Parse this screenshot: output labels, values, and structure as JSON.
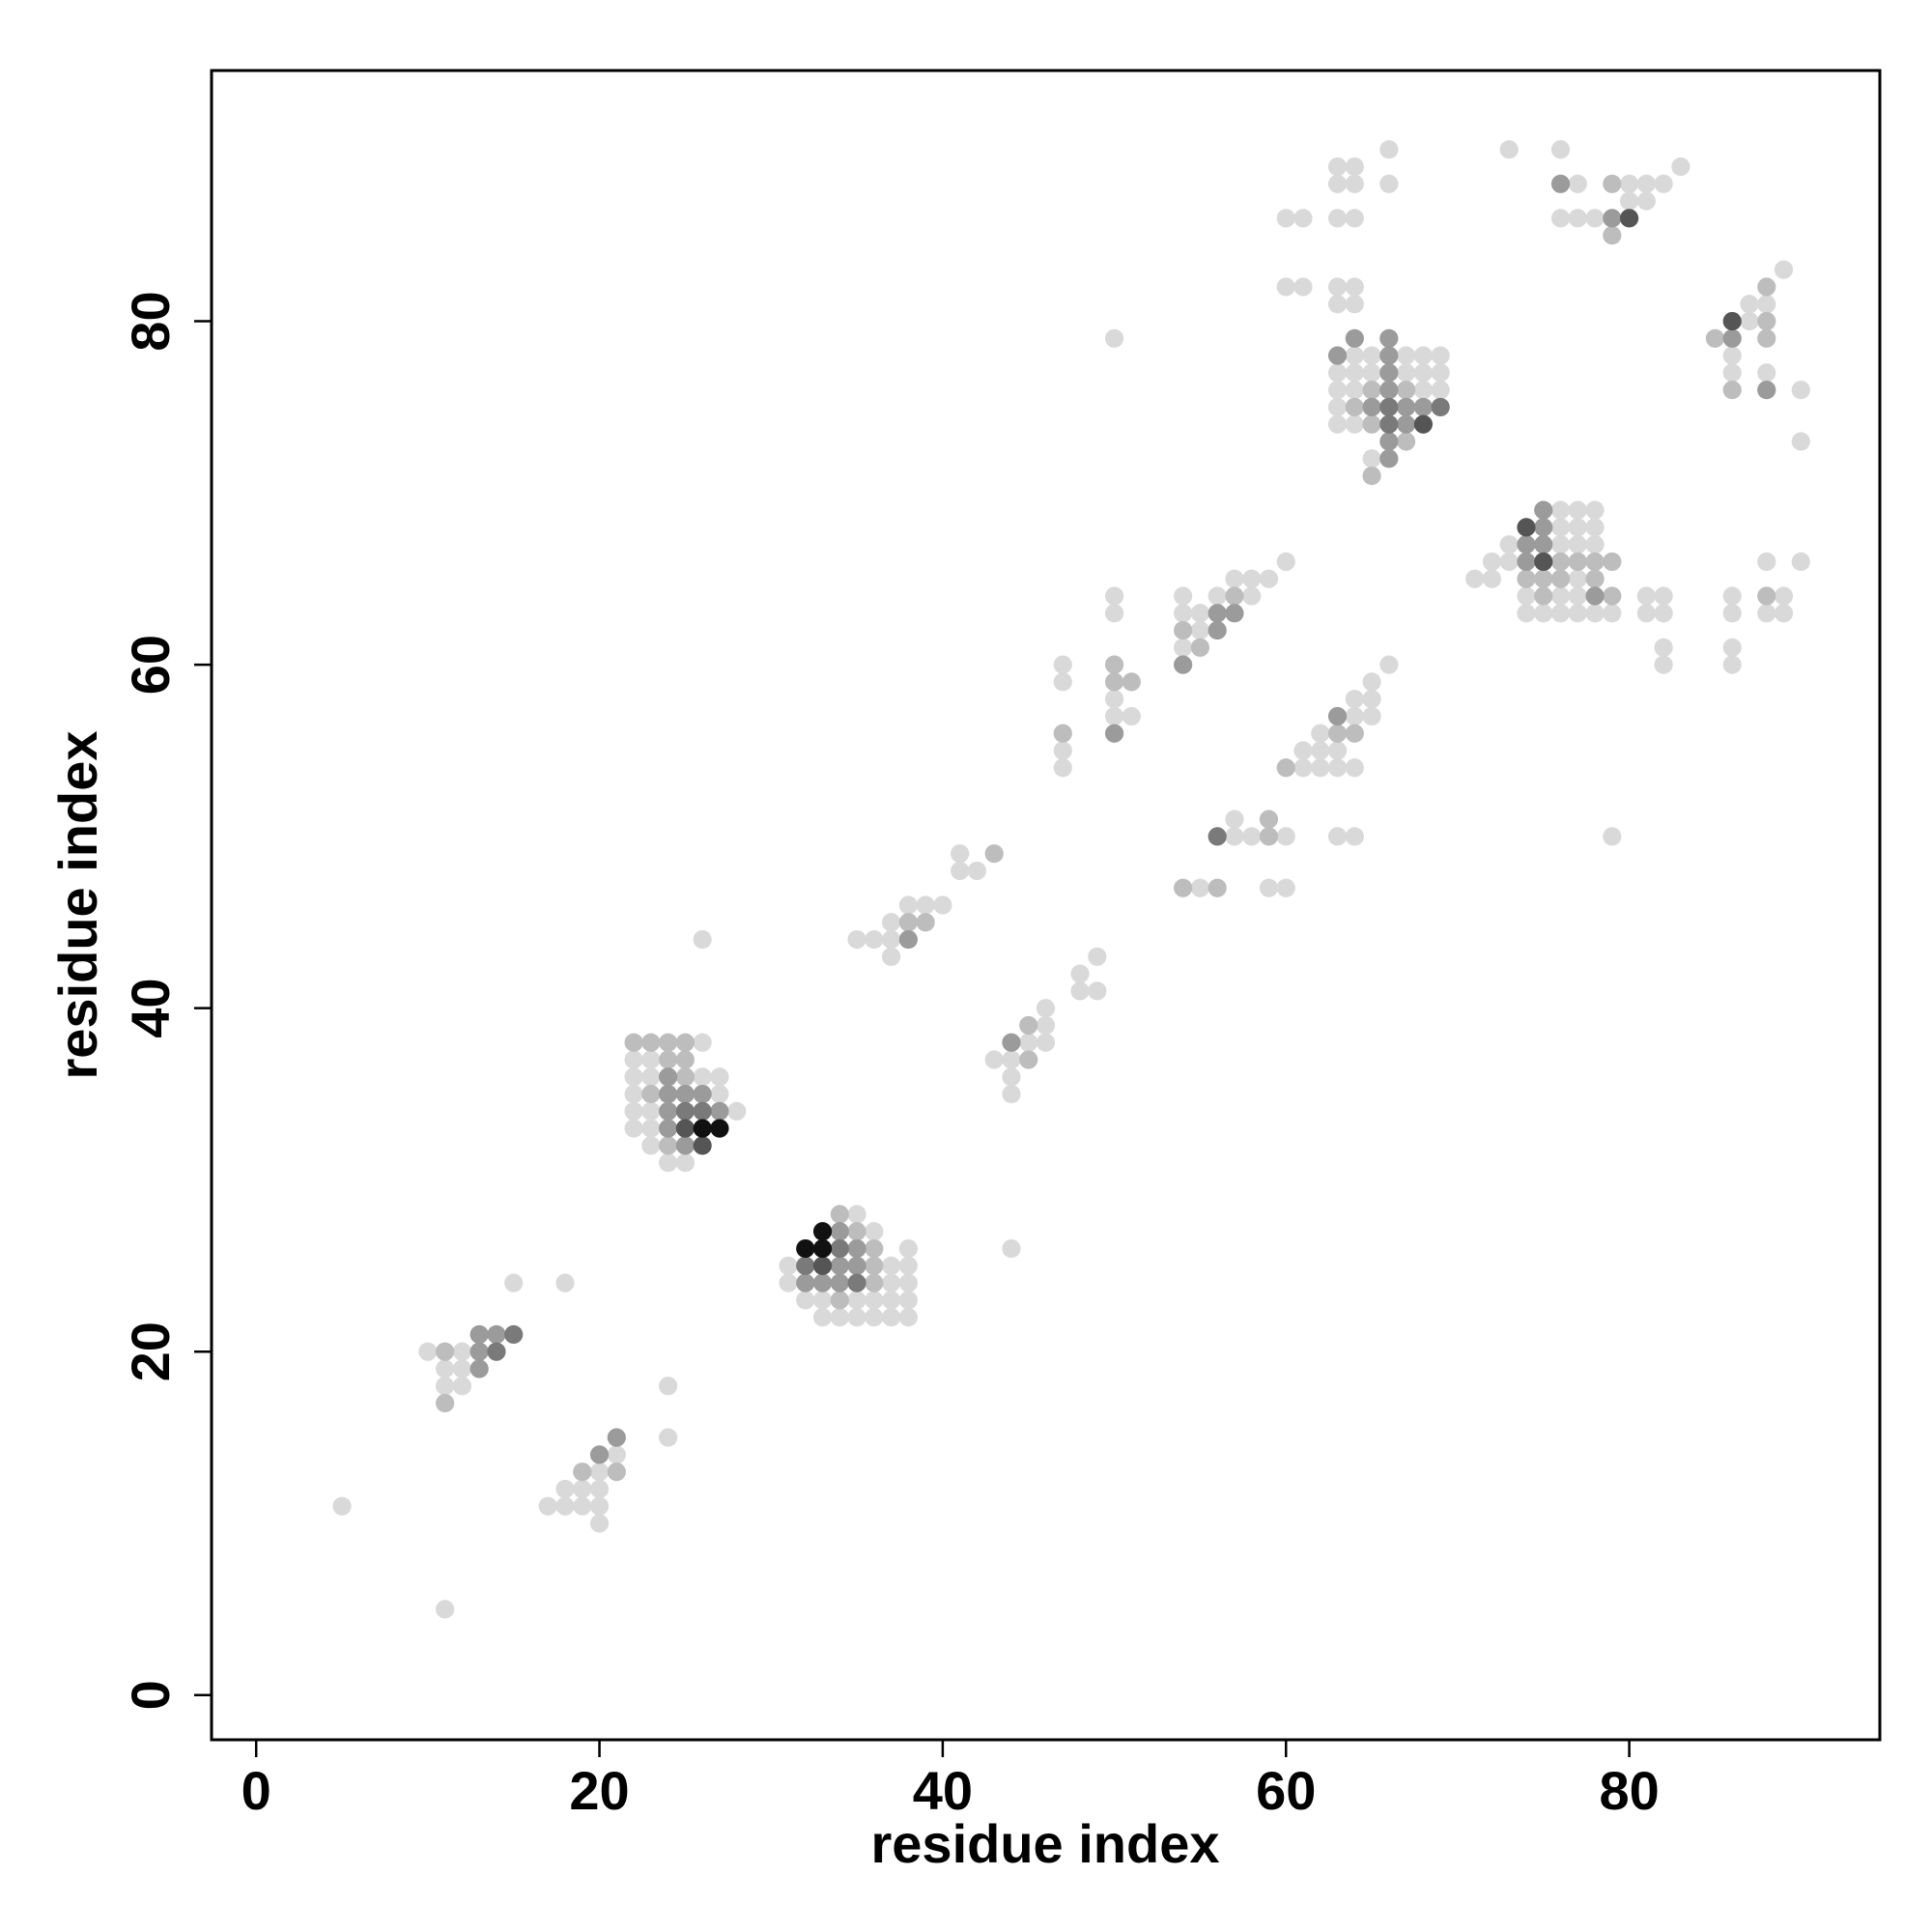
{
  "chart_data": {
    "type": "scatter",
    "xlabel": "residue index",
    "ylabel": "residue index",
    "xlim": [
      -2.6,
      94.6
    ],
    "ylim": [
      -2.6,
      94.6
    ],
    "xticks": [
      0,
      20,
      40,
      60,
      80
    ],
    "yticks": [
      0,
      20,
      40,
      60,
      80
    ],
    "grid": false,
    "series": [
      {
        "color": "#d9d9d9",
        "x": [
          5,
          11,
          10,
          12,
          11,
          12,
          11,
          12,
          15,
          18,
          24,
          24,
          21,
          20,
          18,
          19,
          20,
          17,
          18,
          19,
          20,
          20,
          26,
          22,
          23,
          22,
          23,
          26,
          27,
          22,
          27,
          22,
          23,
          28,
          22,
          23,
          23,
          24,
          25,
          26,
          35,
          36,
          38,
          31,
          37,
          38,
          31,
          37,
          38,
          32,
          33,
          35,
          36,
          37,
          38,
          33,
          34,
          35,
          36,
          37,
          38,
          44,
          46,
          46,
          45,
          46,
          43,
          44,
          44,
          44,
          48,
          48,
          49,
          49,
          41,
          41,
          42,
          38,
          39,
          40,
          37,
          35,
          36,
          37,
          37,
          47,
          47,
          47,
          47,
          50,
          50,
          50,
          50,
          50,
          51,
          60,
          57,
          58,
          59,
          54,
          56,
          58,
          54,
          55,
          55,
          54,
          57,
          57,
          58,
          60,
          55,
          59,
          60,
          66,
          65,
          64,
          65,
          64,
          65,
          62,
          61,
          62,
          63,
          61,
          62,
          63,
          64,
          63,
          64,
          60,
          61,
          60,
          61,
          66,
          63,
          64,
          63,
          64,
          66,
          63,
          64,
          63,
          64,
          63,
          64,
          64,
          65,
          67,
          68,
          69,
          63,
          64,
          65,
          67,
          68,
          69,
          63,
          64,
          68,
          69,
          63,
          63,
          64,
          65,
          73,
          76,
          83,
          77,
          80,
          81,
          82,
          80,
          81,
          76,
          77,
          78,
          89,
          87,
          88,
          87,
          86,
          86,
          88,
          90,
          90,
          76,
          77,
          78,
          76,
          77,
          78,
          73,
          76,
          77,
          78,
          72,
          73,
          71,
          72,
          77,
          74,
          76,
          77,
          74,
          75,
          76,
          77,
          78,
          79,
          81,
          82,
          81,
          82,
          82,
          82,
          86,
          86,
          86,
          86,
          88,
          88,
          89,
          89,
          90,
          79
        ],
        "y": [
          11,
          5,
          20,
          20,
          19,
          19,
          18,
          18,
          24,
          24,
          18,
          15,
          14,
          13,
          12,
          12,
          12,
          11,
          11,
          11,
          11,
          10,
          38,
          37,
          37,
          36,
          36,
          36,
          36,
          35,
          35,
          34,
          34,
          34,
          33,
          33,
          32,
          31,
          31,
          44,
          28,
          27,
          26,
          25,
          25,
          25,
          24,
          24,
          24,
          23,
          23,
          23,
          23,
          23,
          23,
          22,
          22,
          22,
          22,
          22,
          22,
          26,
          40,
          39,
          38,
          38,
          37,
          37,
          36,
          35,
          42,
          41,
          41,
          43,
          49,
          48,
          48,
          46,
          46,
          46,
          45,
          44,
          44,
          44,
          43,
          60,
          59,
          55,
          54,
          79,
          64,
          63,
          58,
          57,
          57,
          66,
          65,
          65,
          65,
          64,
          64,
          64,
          63,
          63,
          62,
          61,
          51,
          50,
          50,
          50,
          47,
          47,
          47,
          60,
          59,
          58,
          58,
          57,
          57,
          56,
          55,
          55,
          55,
          54,
          54,
          54,
          54,
          50,
          50,
          86,
          86,
          82,
          82,
          90,
          89,
          89,
          88,
          88,
          88,
          86,
          86,
          82,
          82,
          81,
          81,
          78,
          78,
          78,
          78,
          78,
          77,
          77,
          77,
          77,
          77,
          77,
          76,
          76,
          76,
          76,
          75,
          74,
          74,
          72,
          90,
          90,
          89,
          88,
          88,
          88,
          88,
          87,
          87,
          86,
          86,
          86,
          83,
          81,
          81,
          80,
          78,
          77,
          77,
          76,
          73,
          69,
          69,
          69,
          68,
          68,
          68,
          67,
          67,
          67,
          67,
          66,
          66,
          65,
          65,
          65,
          64,
          64,
          64,
          63,
          63,
          63,
          63,
          63,
          63,
          64,
          64,
          63,
          63,
          61,
          60,
          64,
          63,
          61,
          60,
          66,
          63,
          64,
          63,
          66,
          50
        ]
      },
      {
        "color": "#bdbdbd",
        "x": [
          11,
          11,
          19,
          21,
          22,
          23,
          24,
          25,
          24,
          25,
          25,
          23,
          24,
          34,
          35,
          36,
          36,
          36,
          34,
          45,
          45,
          43,
          38,
          39,
          47,
          50,
          50,
          51,
          57,
          54,
          55,
          59,
          59,
          54,
          56,
          63,
          64,
          60,
          65,
          67,
          64,
          65,
          67,
          65,
          79,
          79,
          88,
          88,
          85,
          88,
          86,
          76,
          77,
          78,
          79,
          74,
          75,
          76,
          78,
          75,
          79,
          88
        ],
        "y": [
          20,
          17,
          13,
          13,
          38,
          38,
          38,
          38,
          37,
          37,
          36,
          35,
          32,
          28,
          27,
          26,
          25,
          24,
          23,
          39,
          37,
          49,
          45,
          45,
          56,
          60,
          59,
          59,
          64,
          62,
          61,
          51,
          50,
          47,
          47,
          56,
          56,
          54,
          76,
          76,
          75,
          74,
          73,
          71,
          88,
          85,
          82,
          80,
          79,
          79,
          76,
          66,
          66,
          66,
          66,
          65,
          65,
          65,
          65,
          64,
          64,
          64
        ]
      },
      {
        "color": "#9b9b9b",
        "x": [
          13,
          13,
          14,
          13,
          21,
          20,
          24,
          24,
          25,
          26,
          24,
          27,
          24,
          25,
          34,
          35,
          34,
          35,
          32,
          33,
          34,
          44,
          38,
          50,
          56,
          57,
          56,
          54,
          63,
          64,
          66,
          63,
          66,
          66,
          66,
          65,
          67,
          68,
          67,
          66,
          66,
          76,
          79,
          86,
          88,
          75,
          75,
          74,
          75,
          74,
          78
        ],
        "y": [
          20,
          21,
          21,
          19,
          15,
          14,
          36,
          35,
          35,
          35,
          34,
          34,
          33,
          32,
          27,
          26,
          25,
          25,
          24,
          24,
          24,
          38,
          44,
          56,
          63,
          63,
          62,
          60,
          57,
          79,
          79,
          78,
          78,
          77,
          76,
          75,
          75,
          75,
          74,
          73,
          72,
          88,
          86,
          79,
          76,
          69,
          68,
          67,
          67,
          66,
          64
        ]
      },
      {
        "color": "#7a7a7a",
        "x": [
          14,
          15,
          25,
          26,
          34,
          32,
          35,
          56,
          66,
          69,
          66
        ],
        "y": [
          20,
          21,
          34,
          34,
          26,
          25,
          24,
          50,
          75,
          75,
          74
        ]
      },
      {
        "color": "#555555",
        "x": [
          25,
          26,
          33,
          68,
          80,
          86,
          74,
          75
        ],
        "y": [
          33,
          32,
          25,
          74,
          86,
          80,
          68,
          66
        ]
      },
      {
        "color": "#111111",
        "x": [
          26,
          27,
          33,
          32,
          33
        ],
        "y": [
          33,
          33,
          27,
          26,
          26
        ]
      }
    ]
  }
}
